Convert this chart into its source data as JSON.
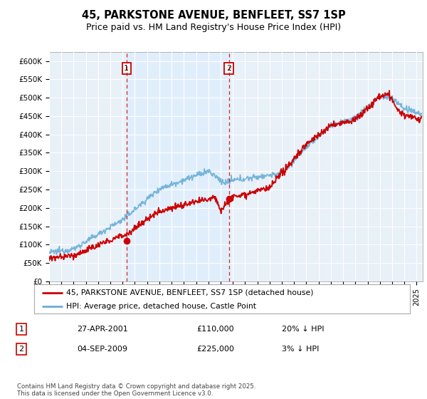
{
  "title": "45, PARKSTONE AVENUE, BENFLEET, SS7 1SP",
  "subtitle": "Price paid vs. HM Land Registry's House Price Index (HPI)",
  "ylim": [
    0,
    625000
  ],
  "yticks": [
    0,
    50000,
    100000,
    150000,
    200000,
    250000,
    300000,
    350000,
    400000,
    450000,
    500000,
    550000,
    600000
  ],
  "ytick_labels": [
    "£0",
    "£50K",
    "£100K",
    "£150K",
    "£200K",
    "£250K",
    "£300K",
    "£350K",
    "£400K",
    "£450K",
    "£500K",
    "£550K",
    "£600K"
  ],
  "hpi_color": "#6baed6",
  "price_color": "#cc0000",
  "marker1_date": 2001.32,
  "marker2_date": 2009.67,
  "marker1_price": 110000,
  "marker2_price": 225000,
  "shading_color": "#ddeeff",
  "legend_line1": "45, PARKSTONE AVENUE, BENFLEET, SS7 1SP (detached house)",
  "legend_line2": "HPI: Average price, detached house, Castle Point",
  "table_row1": [
    "1",
    "27-APR-2001",
    "£110,000",
    "20% ↓ HPI"
  ],
  "table_row2": [
    "2",
    "04-SEP-2009",
    "£225,000",
    "3% ↓ HPI"
  ],
  "footnote": "Contains HM Land Registry data © Crown copyright and database right 2025.\nThis data is licensed under the Open Government Licence v3.0.",
  "background_color": "#ffffff",
  "plot_bg_color": "#e8f0f8",
  "grid_color": "#ffffff",
  "title_fontsize": 10.5,
  "subtitle_fontsize": 9
}
